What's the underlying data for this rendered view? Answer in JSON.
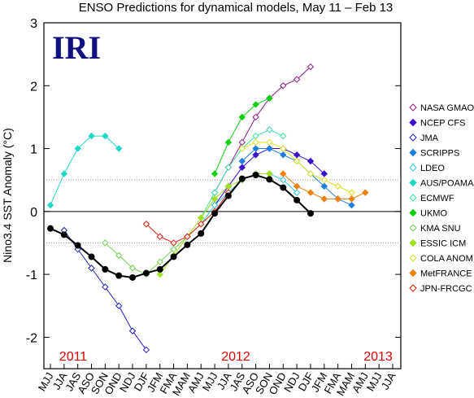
{
  "chart_data": {
    "type": "line",
    "title": "ENSO Predictions for dynamical models, May 11 – Feb 13",
    "brand": "IRI",
    "ylabel": "Nino3.4 SST Anomaly (°C)",
    "years": [
      "2011",
      "2012",
      "2013"
    ],
    "categories": [
      "MJJ",
      "JJA",
      "JAS",
      "ASO",
      "SON",
      "OND",
      "NDJ",
      "DJF",
      "JFM",
      "FMA",
      "MAM",
      "AMJ",
      "MJJ",
      "JJA",
      "JAS",
      "ASO",
      "SON",
      "OND",
      "NDJ",
      "DJF",
      "JFM",
      "FMA",
      "MAM",
      "AMJ",
      "MJJ",
      "JJA"
    ],
    "ylim": [
      -2.5,
      3
    ],
    "yticks": [
      -2,
      -1,
      0,
      1,
      2,
      3
    ],
    "hlines": [
      {
        "value": 0,
        "style": "solid"
      },
      {
        "value": 0.5,
        "style": "dotted"
      },
      {
        "value": -0.5,
        "style": "dotted"
      }
    ],
    "observed": {
      "color": "#000000",
      "values": [
        -0.27,
        -0.37,
        -0.54,
        -0.72,
        -0.92,
        -1.02,
        -1.05,
        -0.98,
        -0.92,
        -0.72,
        -0.53,
        -0.35,
        -0.03,
        0.25,
        0.52,
        0.58,
        0.51,
        0.38,
        0.18,
        -0.03,
        null,
        null,
        null,
        null,
        null,
        null
      ]
    },
    "series": [
      {
        "name": "NASA GMAO",
        "color": "#8b1a8b",
        "marker": "open",
        "values": [
          null,
          null,
          null,
          null,
          null,
          null,
          null,
          null,
          null,
          null,
          null,
          null,
          0.3,
          0.7,
          1.1,
          1.5,
          1.8,
          2.0,
          2.1,
          2.3,
          null,
          null,
          null,
          null,
          null,
          null
        ]
      },
      {
        "name": "NCEP CFS",
        "color": "#3a0ccc",
        "marker": "filled",
        "values": [
          null,
          null,
          null,
          null,
          null,
          null,
          null,
          null,
          null,
          null,
          null,
          null,
          0.1,
          0.4,
          0.7,
          0.9,
          1.0,
          1.0,
          0.9,
          0.8,
          0.6,
          null,
          null,
          null,
          null,
          null
        ]
      },
      {
        "name": "JMA",
        "color": "#2020c0",
        "marker": "open",
        "values": [
          null,
          -0.3,
          -0.6,
          -0.9,
          -1.2,
          -1.5,
          -1.9,
          -2.2,
          null,
          null,
          null,
          null,
          null,
          null,
          null,
          null,
          null,
          null,
          null,
          null,
          null,
          null,
          null,
          null,
          null,
          null
        ]
      },
      {
        "name": "SCRIPPS",
        "color": "#1e7fe0",
        "marker": "filled",
        "values": [
          null,
          null,
          null,
          null,
          null,
          null,
          null,
          null,
          null,
          null,
          null,
          null,
          null,
          null,
          0.8,
          1.0,
          1.0,
          0.9,
          0.8,
          0.6,
          0.4,
          0.2,
          0.1,
          null,
          null,
          null
        ]
      },
      {
        "name": "LDEO",
        "color": "#30c8e8",
        "marker": "open",
        "values": [
          null,
          null,
          null,
          null,
          null,
          null,
          null,
          null,
          null,
          null,
          -0.4,
          -0.2,
          0.1,
          0.3,
          0.5,
          0.6,
          0.6,
          0.5,
          0.3,
          null,
          null,
          null,
          null,
          null,
          null,
          null
        ]
      },
      {
        "name": "AUS/POAMA",
        "color": "#20d8c8",
        "marker": "filled",
        "values": [
          0.1,
          0.6,
          1.0,
          1.2,
          1.2,
          1.0,
          null,
          null,
          null,
          null,
          null,
          null,
          null,
          null,
          null,
          null,
          null,
          null,
          null,
          null,
          null,
          null,
          null,
          null,
          null,
          null
        ]
      },
      {
        "name": "ECMWF",
        "color": "#40e0a0",
        "marker": "open",
        "values": [
          null,
          null,
          null,
          null,
          null,
          null,
          null,
          null,
          null,
          null,
          null,
          -0.1,
          0.3,
          0.7,
          1.0,
          1.2,
          1.3,
          1.2,
          null,
          null,
          null,
          null,
          null,
          null,
          null,
          null
        ]
      },
      {
        "name": "UKMO",
        "color": "#10d010",
        "marker": "filled",
        "values": [
          null,
          null,
          null,
          null,
          null,
          null,
          null,
          null,
          null,
          null,
          null,
          null,
          0.6,
          1.1,
          1.5,
          1.7,
          1.8,
          null,
          null,
          null,
          null,
          null,
          null,
          null,
          null,
          null
        ]
      },
      {
        "name": "KMA SNU",
        "color": "#70d050",
        "marker": "open",
        "values": [
          null,
          null,
          null,
          null,
          -0.5,
          -0.7,
          -0.9,
          -1.0,
          -0.8,
          -0.6,
          -0.4,
          -0.2,
          0.0,
          null,
          null,
          null,
          null,
          null,
          null,
          null,
          null,
          null,
          null,
          null,
          null,
          null
        ]
      },
      {
        "name": "ESSIC ICM",
        "color": "#a0e020",
        "marker": "filled",
        "values": [
          null,
          null,
          null,
          null,
          null,
          null,
          null,
          null,
          -1.0,
          -0.7,
          -0.4,
          -0.1,
          0.2,
          0.4,
          0.5,
          0.6,
          0.6,
          null,
          null,
          null,
          null,
          null,
          null,
          null,
          null,
          null
        ]
      },
      {
        "name": "COLA ANOM",
        "color": "#e0e020",
        "marker": "open",
        "values": [
          null,
          null,
          null,
          null,
          null,
          null,
          null,
          null,
          null,
          null,
          null,
          null,
          null,
          null,
          1.0,
          1.1,
          1.1,
          1.0,
          0.8,
          0.6,
          0.5,
          0.4,
          0.3,
          null,
          null,
          null
        ]
      },
      {
        "name": "MetFRANCE",
        "color": "#f08010",
        "marker": "filled",
        "values": [
          null,
          null,
          null,
          null,
          null,
          null,
          null,
          null,
          null,
          null,
          null,
          null,
          null,
          null,
          null,
          null,
          null,
          0.6,
          0.4,
          0.3,
          0.2,
          0.2,
          0.2,
          0.3,
          null,
          null
        ]
      },
      {
        "name": "JPN-FRCGC",
        "color": "#e02010",
        "marker": "open",
        "values": [
          null,
          null,
          null,
          null,
          null,
          null,
          null,
          -0.2,
          -0.4,
          -0.5,
          -0.4,
          -0.2,
          0.0,
          0.3,
          null,
          null,
          null,
          null,
          null,
          null,
          null,
          null,
          null,
          null,
          null,
          null
        ]
      }
    ]
  }
}
